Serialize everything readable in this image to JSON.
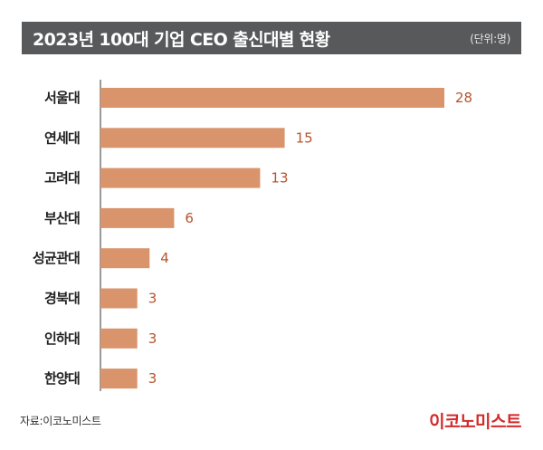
{
  "header": {
    "title": "2023년 100대 기업 CEO 출신대별 현황",
    "unit": "(단위:명)"
  },
  "footer": {
    "source": "자료:이코노미스트",
    "brand": "이코노미스트"
  },
  "colors": {
    "bar": "#d9946c",
    "value_text": "#b5532e",
    "title_bg": "#58595b",
    "brand": "#d32a2a"
  },
  "chart_data": {
    "type": "bar",
    "orientation": "horizontal",
    "categories": [
      "서울대",
      "연세대",
      "고려대",
      "부산대",
      "성균관대",
      "경북대",
      "인하대",
      "한양대"
    ],
    "values": [
      28,
      15,
      13,
      6,
      4,
      3,
      3,
      3
    ],
    "title": "2023년 100대 기업 CEO 출신대별 현황",
    "xlabel": "",
    "ylabel": "",
    "xlim": [
      0,
      28
    ],
    "grid": false,
    "legend": "none",
    "data_labels": true
  }
}
